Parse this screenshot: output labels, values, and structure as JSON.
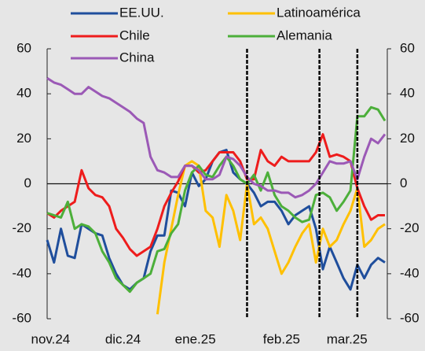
{
  "chart_data": {
    "type": "line",
    "x": [
      0,
      2,
      4,
      6,
      8,
      10,
      12,
      14,
      16,
      18,
      20,
      22,
      24,
      26,
      28,
      30,
      32,
      34,
      36,
      38,
      40,
      42,
      44,
      46,
      48,
      50,
      52,
      54,
      56,
      58,
      60,
      62,
      64,
      66,
      68,
      70,
      72,
      74,
      76,
      78,
      80,
      82,
      84,
      86,
      88,
      90,
      92,
      94,
      96,
      98
    ],
    "xlim": [
      0,
      98
    ],
    "xticks": [
      {
        "value": 1,
        "label": "nov.24"
      },
      {
        "value": 22,
        "label": "dic.24"
      },
      {
        "value": 43,
        "label": "ene.25"
      },
      {
        "value": 68,
        "label": "feb.25"
      },
      {
        "value": 87,
        "label": "mar.25"
      }
    ],
    "ylim": [
      -60,
      60
    ],
    "yticks": [
      -60,
      -40,
      -20,
      0,
      20,
      40,
      60
    ],
    "y2lim": [
      -60,
      60
    ],
    "y2ticks": [
      -60,
      -40,
      -20,
      0,
      20,
      40,
      60
    ],
    "vlines": [
      58,
      79,
      90
    ],
    "series": [
      {
        "name": "EE.UU.",
        "color": "#1f4e9c",
        "values": [
          -25,
          -35,
          -20,
          -32,
          -33,
          -18,
          -20,
          -22,
          -23,
          -33,
          -40,
          -45,
          -47,
          -44,
          -42,
          -30,
          -23,
          -23,
          -3,
          -4,
          -10,
          5,
          -1,
          2,
          10,
          14,
          15,
          5,
          2,
          0,
          -4,
          -10,
          -8,
          -8,
          -12,
          -18,
          -14,
          -12,
          -10,
          -20,
          -38,
          -28,
          -35,
          -42,
          -47,
          -36,
          -42,
          -36,
          -33,
          -35
        ]
      },
      {
        "name": "Latinoamérica",
        "color": "#ffc000",
        "values": [
          null,
          null,
          null,
          null,
          null,
          null,
          null,
          null,
          null,
          null,
          null,
          null,
          null,
          null,
          null,
          null,
          -58,
          -35,
          -20,
          -5,
          8,
          10,
          8,
          -12,
          -15,
          -28,
          -5,
          -12,
          -25,
          0,
          -18,
          -15,
          -20,
          -30,
          -40,
          -35,
          -28,
          -22,
          -18,
          -35,
          -20,
          -28,
          -25,
          -18,
          -12,
          -2,
          -28,
          -25,
          -20,
          -18
        ]
      },
      {
        "name": "Chile",
        "color": "#ee1c1c",
        "values": [
          -13,
          -15,
          -12,
          -10,
          -8,
          6,
          -2,
          -5,
          -6,
          -10,
          -20,
          -24,
          -29,
          -32,
          -30,
          -28,
          -20,
          -10,
          -4,
          1,
          8,
          8,
          5,
          6,
          10,
          14,
          14,
          14,
          10,
          2,
          2,
          15,
          10,
          8,
          12,
          10,
          10,
          10,
          10,
          14,
          22,
          12,
          13,
          12,
          10,
          -2,
          -10,
          -16,
          -14,
          -14
        ]
      },
      {
        "name": "Alemania",
        "color": "#4caf3a",
        "values": [
          -13,
          -14,
          -15,
          -8,
          -20,
          -18,
          -19,
          -22,
          -30,
          -35,
          -42,
          -45,
          -48,
          -44,
          -42,
          -40,
          -30,
          -29,
          -22,
          -18,
          -3,
          5,
          8,
          4,
          3,
          8,
          12,
          8,
          2,
          0,
          4,
          -3,
          5,
          -5,
          -10,
          -12,
          -15,
          -17,
          -16,
          -5,
          -4,
          -6,
          -12,
          -8,
          -3,
          30,
          30,
          34,
          33,
          28
        ]
      },
      {
        "name": "China",
        "color": "#9b59b6",
        "values": [
          47,
          45,
          44,
          42,
          40,
          40,
          43,
          41,
          39,
          38,
          36,
          34,
          32,
          29,
          27,
          12,
          6,
          5,
          3,
          3,
          8,
          8,
          6,
          2,
          2,
          4,
          12,
          11,
          8,
          3,
          0,
          -1,
          -3,
          -3,
          -4,
          -4,
          -6,
          -5,
          -3,
          0,
          5,
          10,
          9,
          9,
          10,
          2,
          12,
          20,
          18,
          22
        ]
      }
    ]
  }
}
